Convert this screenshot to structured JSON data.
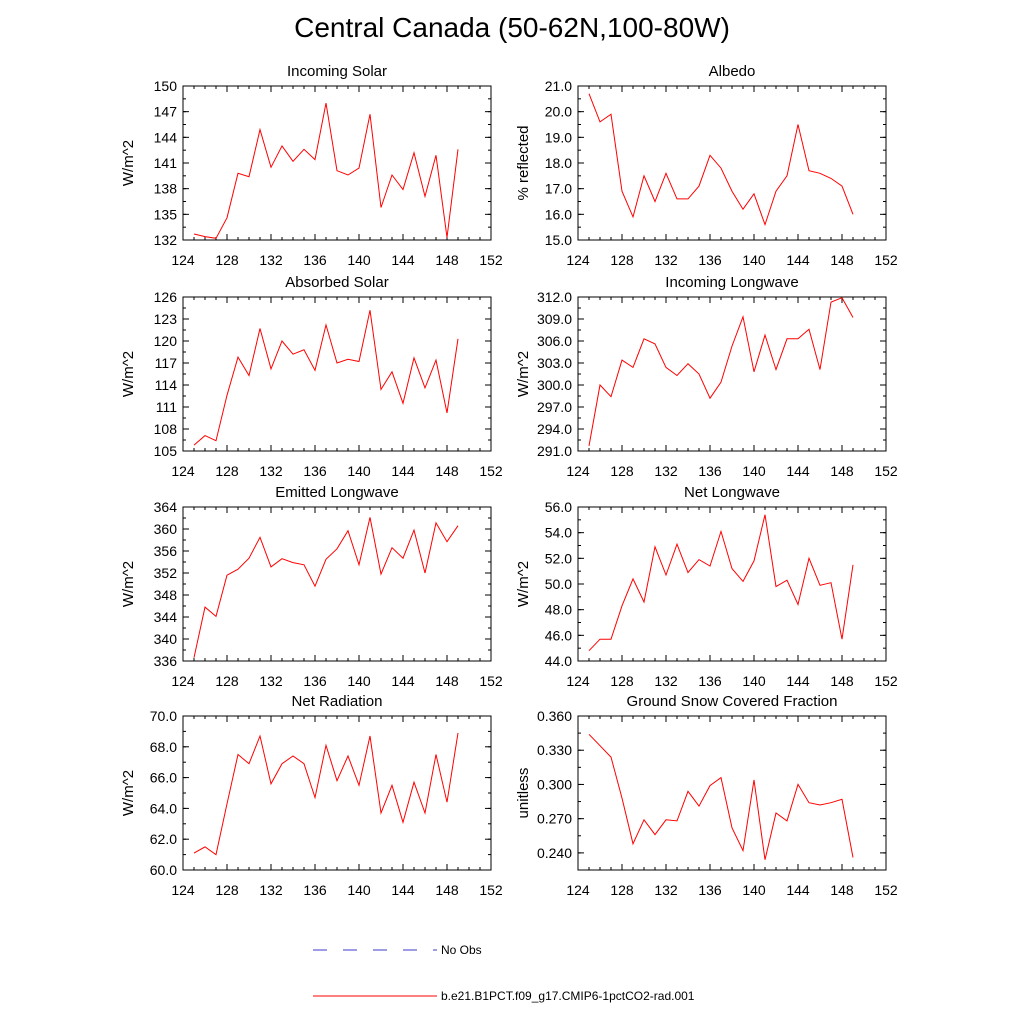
{
  "title": "Central Canada (50-62N,100-80W)",
  "legend": [
    {
      "label": "No Obs",
      "color": "#3b3bcc",
      "style": "dashed"
    },
    {
      "label": "b.e21.B1PCT.f09_g17.CMIP6-1pctCO2-rad.001",
      "color": "#ff0000",
      "style": "solid"
    }
  ],
  "chart_data": [
    {
      "type": "line",
      "title": "Incoming Solar",
      "ylabel": "W/m^2",
      "xlim": [
        124,
        152
      ],
      "ylim": [
        132,
        150
      ],
      "xticks": [
        "124",
        "128",
        "132",
        "136",
        "140",
        "144",
        "148",
        "152"
      ],
      "yticks": [
        "132",
        "135",
        "138",
        "141",
        "144",
        "147",
        "150"
      ],
      "x": [
        125,
        126,
        127,
        128,
        129,
        130,
        131,
        132,
        133,
        134,
        135,
        136,
        137,
        138,
        139,
        140,
        141,
        142,
        143,
        144,
        145,
        146,
        147,
        148,
        149
      ],
      "series": [
        {
          "name": "b.e21.B1PCT.f09_g17.CMIP6-1pctCO2-rad.001",
          "values": [
            132.7,
            132.4,
            132.2,
            134.6,
            139.8,
            139.4,
            144.9,
            140.5,
            143.0,
            141.2,
            142.6,
            141.4,
            148.0,
            140.1,
            139.6,
            140.4,
            146.7,
            135.8,
            139.6,
            137.9,
            142.2,
            137.1,
            141.9,
            132.3,
            142.6
          ]
        }
      ]
    },
    {
      "type": "line",
      "title": "Albedo",
      "ylabel": "% reflected",
      "xlim": [
        124,
        152
      ],
      "ylim": [
        15.0,
        21.0
      ],
      "xticks": [
        "124",
        "128",
        "132",
        "136",
        "140",
        "144",
        "148",
        "152"
      ],
      "yticks": [
        "15.0",
        "16.0",
        "17.0",
        "18.0",
        "19.0",
        "20.0",
        "21.0"
      ],
      "x": [
        125,
        126,
        127,
        128,
        129,
        130,
        131,
        132,
        133,
        134,
        135,
        136,
        137,
        138,
        139,
        140,
        141,
        142,
        143,
        144,
        145,
        146,
        147,
        148,
        149
      ],
      "series": [
        {
          "name": "b.e21.B1PCT.f09_g17.CMIP6-1pctCO2-rad.001",
          "values": [
            20.7,
            19.6,
            19.9,
            16.9,
            15.9,
            17.5,
            16.5,
            17.6,
            16.6,
            16.6,
            17.1,
            18.3,
            17.8,
            16.9,
            16.2,
            16.8,
            15.6,
            16.9,
            17.5,
            19.5,
            17.7,
            17.6,
            17.4,
            17.1,
            16.0
          ]
        }
      ]
    },
    {
      "type": "line",
      "title": "Absorbed Solar",
      "ylabel": "W/m^2",
      "xlim": [
        124,
        152
      ],
      "ylim": [
        105,
        126
      ],
      "xticks": [
        "124",
        "128",
        "132",
        "136",
        "140",
        "144",
        "148",
        "152"
      ],
      "yticks": [
        "105",
        "108",
        "111",
        "114",
        "117",
        "120",
        "123",
        "126"
      ],
      "x": [
        125,
        126,
        127,
        128,
        129,
        130,
        131,
        132,
        133,
        134,
        135,
        136,
        137,
        138,
        139,
        140,
        141,
        142,
        143,
        144,
        145,
        146,
        147,
        148,
        149
      ],
      "series": [
        {
          "name": "b.e21.B1PCT.f09_g17.CMIP6-1pctCO2-rad.001",
          "values": [
            105.8,
            107.1,
            106.4,
            112.6,
            117.8,
            115.3,
            121.7,
            116.2,
            120.0,
            118.2,
            118.8,
            116.0,
            122.2,
            117.0,
            117.5,
            117.2,
            124.2,
            113.4,
            115.8,
            111.5,
            117.7,
            113.6,
            117.4,
            110.2,
            120.3
          ]
        }
      ]
    },
    {
      "type": "line",
      "title": "Incoming Longwave",
      "ylabel": "W/m^2",
      "xlim": [
        124,
        152
      ],
      "ylim": [
        291.0,
        312.0
      ],
      "xticks": [
        "124",
        "128",
        "132",
        "136",
        "140",
        "144",
        "148",
        "152"
      ],
      "yticks": [
        "291.0",
        "294.0",
        "297.0",
        "300.0",
        "303.0",
        "306.0",
        "309.0",
        "312.0"
      ],
      "x": [
        125,
        126,
        127,
        128,
        129,
        130,
        131,
        132,
        133,
        134,
        135,
        136,
        137,
        138,
        139,
        140,
        141,
        142,
        143,
        144,
        145,
        146,
        147,
        148,
        149
      ],
      "series": [
        {
          "name": "b.e21.B1PCT.f09_g17.CMIP6-1pctCO2-rad.001",
          "values": [
            291.7,
            300.0,
            298.4,
            303.4,
            302.4,
            306.3,
            305.6,
            302.4,
            301.3,
            302.9,
            301.5,
            298.2,
            300.4,
            305.3,
            309.3,
            301.8,
            306.8,
            302.1,
            306.3,
            306.3,
            307.6,
            302.1,
            311.3,
            311.9,
            309.2
          ]
        }
      ]
    },
    {
      "type": "line",
      "title": "Emitted Longwave",
      "ylabel": "W/m^2",
      "xlim": [
        124,
        152
      ],
      "ylim": [
        336,
        364
      ],
      "xticks": [
        "124",
        "128",
        "132",
        "136",
        "140",
        "144",
        "148",
        "152"
      ],
      "yticks": [
        "336",
        "340",
        "344",
        "348",
        "352",
        "356",
        "360",
        "364"
      ],
      "x": [
        125,
        126,
        127,
        128,
        129,
        130,
        131,
        132,
        133,
        134,
        135,
        136,
        137,
        138,
        139,
        140,
        141,
        142,
        143,
        144,
        145,
        146,
        147,
        148,
        149
      ],
      "series": [
        {
          "name": "b.e21.B1PCT.f09_g17.CMIP6-1pctCO2-rad.001",
          "values": [
            336.6,
            345.8,
            344.1,
            351.6,
            352.7,
            354.7,
            358.5,
            353.1,
            354.6,
            353.9,
            353.5,
            349.6,
            354.5,
            356.4,
            359.7,
            353.5,
            362.1,
            351.8,
            356.6,
            354.7,
            359.8,
            352.0,
            361.1,
            357.7,
            360.6
          ]
        }
      ]
    },
    {
      "type": "line",
      "title": "Net Longwave",
      "ylabel": "W/m^2",
      "xlim": [
        124,
        152
      ],
      "ylim": [
        44.0,
        56.0
      ],
      "xticks": [
        "124",
        "128",
        "132",
        "136",
        "140",
        "144",
        "148",
        "152"
      ],
      "yticks": [
        "44.0",
        "46.0",
        "48.0",
        "50.0",
        "52.0",
        "54.0",
        "56.0"
      ],
      "x": [
        125,
        126,
        127,
        128,
        129,
        130,
        131,
        132,
        133,
        134,
        135,
        136,
        137,
        138,
        139,
        140,
        141,
        142,
        143,
        144,
        145,
        146,
        147,
        148,
        149
      ],
      "series": [
        {
          "name": "b.e21.B1PCT.f09_g17.CMIP6-1pctCO2-rad.001",
          "values": [
            44.8,
            45.7,
            45.7,
            48.3,
            50.4,
            48.6,
            52.9,
            50.7,
            53.1,
            50.9,
            51.9,
            51.4,
            54.1,
            51.2,
            50.2,
            51.8,
            55.4,
            49.8,
            50.3,
            48.4,
            52.0,
            49.9,
            50.1,
            45.7,
            51.5
          ]
        }
      ]
    },
    {
      "type": "line",
      "title": "Net Radiation",
      "ylabel": "W/m^2",
      "xlim": [
        124,
        152
      ],
      "ylim": [
        60.0,
        70.0
      ],
      "xticks": [
        "124",
        "128",
        "132",
        "136",
        "140",
        "144",
        "148",
        "152"
      ],
      "yticks": [
        "60.0",
        "62.0",
        "64.0",
        "66.0",
        "68.0",
        "70.0"
      ],
      "x": [
        125,
        126,
        127,
        128,
        129,
        130,
        131,
        132,
        133,
        134,
        135,
        136,
        137,
        138,
        139,
        140,
        141,
        142,
        143,
        144,
        145,
        146,
        147,
        148,
        149
      ],
      "series": [
        {
          "name": "b.e21.B1PCT.f09_g17.CMIP6-1pctCO2-rad.001",
          "values": [
            61.1,
            61.5,
            61.0,
            64.3,
            67.5,
            66.9,
            68.7,
            65.6,
            66.9,
            67.4,
            66.9,
            64.7,
            68.1,
            65.8,
            67.4,
            65.5,
            68.7,
            63.7,
            65.5,
            63.1,
            65.7,
            63.7,
            67.5,
            64.4,
            68.9
          ]
        }
      ]
    },
    {
      "type": "line",
      "title": "Ground Snow Covered Fraction",
      "ylabel": "unitless",
      "xlim": [
        124,
        152
      ],
      "ylim": [
        0.225,
        0.36
      ],
      "xticks": [
        "124",
        "128",
        "132",
        "136",
        "140",
        "144",
        "148",
        "152"
      ],
      "yticks": [
        "0.240",
        "0.270",
        "0.300",
        "0.330",
        "0.360"
      ],
      "x": [
        125,
        126,
        127,
        128,
        129,
        130,
        131,
        132,
        133,
        134,
        135,
        136,
        137,
        138,
        139,
        140,
        141,
        142,
        143,
        144,
        145,
        146,
        147,
        148,
        149
      ],
      "series": [
        {
          "name": "b.e21.B1PCT.f09_g17.CMIP6-1pctCO2-rad.001",
          "values": [
            0.344,
            0.334,
            0.324,
            0.288,
            0.248,
            0.269,
            0.256,
            0.269,
            0.268,
            0.294,
            0.281,
            0.299,
            0.306,
            0.262,
            0.242,
            0.304,
            0.234,
            0.275,
            0.268,
            0.3,
            0.284,
            0.282,
            0.284,
            0.287,
            0.236
          ]
        }
      ]
    }
  ]
}
